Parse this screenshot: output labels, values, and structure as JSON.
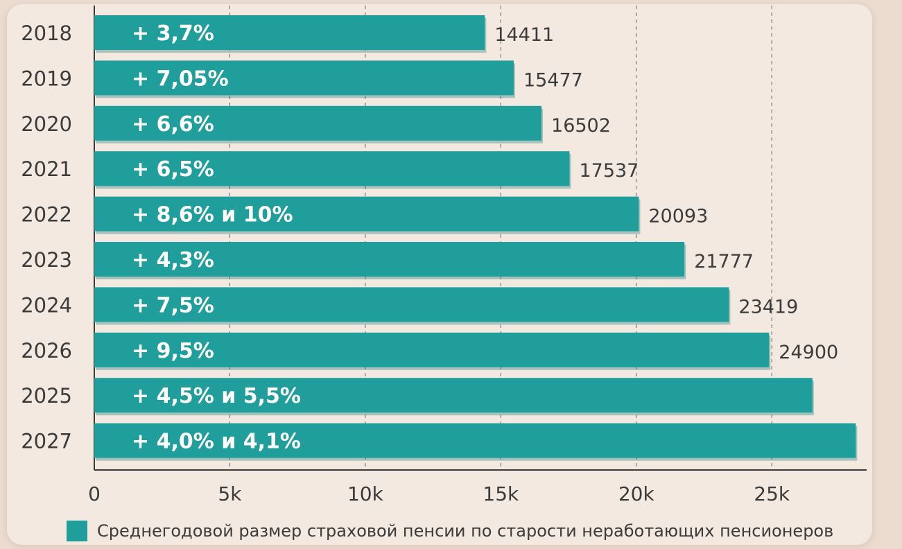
{
  "colors": {
    "bar": "#1f9e9c",
    "bar_shadow": "#157a78",
    "text": "#3b3b3b",
    "grid": "#7a7a7a"
  },
  "chart_data": {
    "type": "bar",
    "orientation": "horizontal",
    "categories": [
      "2018",
      "2019",
      "2020",
      "2021",
      "2022",
      "2023",
      "2024",
      "2026",
      "2025",
      "2027"
    ],
    "series": [
      {
        "name": "Среднегодовой размер страховой пенсии по старости неработающих пенсионеров",
        "values": [
          14411,
          15477,
          16502,
          17537,
          20093,
          21777,
          23419,
          24900,
          26500,
          28100
        ],
        "value_labels": [
          "14411",
          "15477",
          "16502",
          "17537",
          "20093",
          "21777",
          "23419",
          "24900",
          "",
          ""
        ],
        "bar_labels": [
          "+ 3,7%",
          "+ 7,05%",
          "+ 6,6%",
          "+ 6,5%",
          "+ 8,6% и 10%",
          "+ 4,3%",
          "+ 7,5%",
          "+ 9,5%",
          "+ 4,5% и 5,5%",
          "+ 4,0% и 4,1%"
        ]
      }
    ],
    "x_ticks": [
      0,
      5000,
      10000,
      15000,
      20000,
      25000
    ],
    "x_tick_labels": [
      "0",
      "5k",
      "10k",
      "15k",
      "20k",
      "25k"
    ],
    "xlim": [
      0,
      28500
    ],
    "grid": "vertical dashed",
    "legend_position": "bottom"
  },
  "legend": {
    "label": "Среднегодовой размер страховой пенсии по старости неработающих пенсионеров"
  }
}
